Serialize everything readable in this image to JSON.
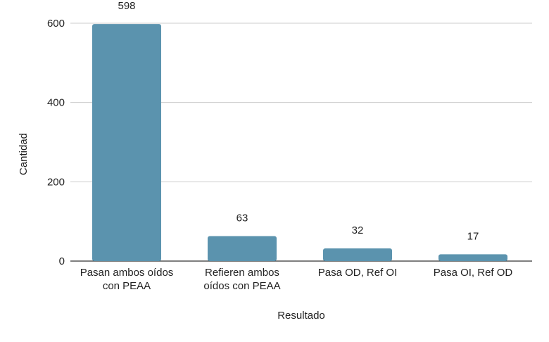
{
  "chart_data": {
    "type": "bar",
    "title": "",
    "xlabel": "Resultado",
    "ylabel": "Cantidad",
    "categories": [
      [
        "Pasan ambos oídos",
        "con PEAA"
      ],
      [
        "Refieren ambos",
        "oídos con PEAA"
      ],
      [
        "Pasa OD, Ref OI"
      ],
      [
        "Pasa OI, Ref OD"
      ]
    ],
    "values": [
      598,
      63,
      32,
      17
    ],
    "data_labels": [
      "598",
      "63",
      "32",
      "17"
    ],
    "y_ticks": [
      0,
      200,
      400,
      600
    ],
    "y_tick_labels": [
      "0",
      "200",
      "400",
      "600"
    ],
    "ylim": [
      0,
      600
    ],
    "grid": true,
    "legend": "none",
    "colors": {
      "bar": "#5b93ae",
      "grid": "#cccccc",
      "axis": "#333333"
    }
  }
}
